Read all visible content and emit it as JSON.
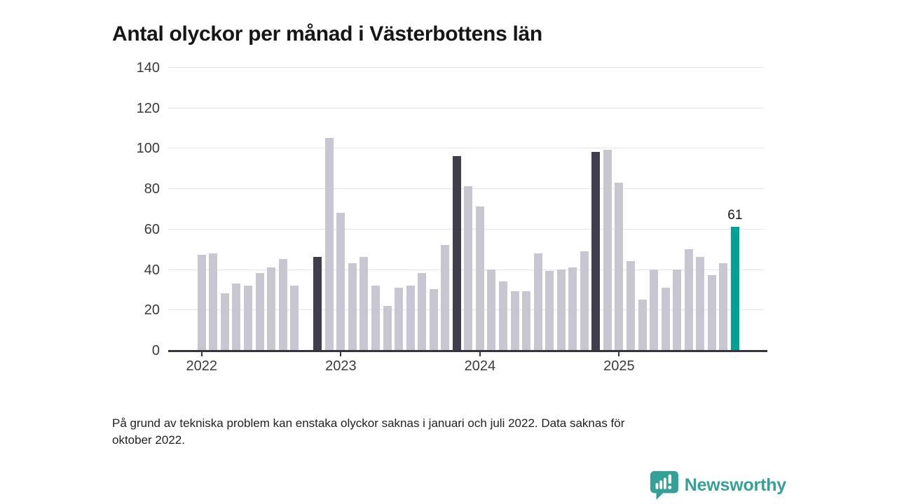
{
  "title": "Antal olyckor per månad i Västerbottens län",
  "footnote": {
    "line1": "På grund av tekniska problem kan enstaka olyckor saknas i januari och juli 2022. Data saknas för",
    "line2": "oktober 2022."
  },
  "logo": {
    "text": "Newsworthy",
    "icon": "speech-bubble-bar-chart-icon",
    "color": "#35a099"
  },
  "colors": {
    "axis": "#35343e",
    "gridline": "#e4e3e8",
    "title_text": "#161616",
    "tick_text": "#3a3a3a"
  },
  "chart_data": {
    "type": "bar",
    "title": "Antal olyckor per månad i Västerbottens län",
    "x": [
      "2022-01",
      "2022-02",
      "2022-03",
      "2022-04",
      "2022-05",
      "2022-06",
      "2022-07",
      "2022-08",
      "2022-09",
      "2022-10",
      "2022-11",
      "2022-12",
      "2023-01",
      "2023-02",
      "2023-03",
      "2023-04",
      "2023-05",
      "2023-06",
      "2023-07",
      "2023-08",
      "2023-09",
      "2023-10",
      "2023-11",
      "2023-12",
      "2024-01",
      "2024-02",
      "2024-03",
      "2024-04",
      "2024-05",
      "2024-06",
      "2024-07",
      "2024-08",
      "2024-09",
      "2024-10",
      "2024-11",
      "2024-12",
      "2025-01",
      "2025-02",
      "2025-03",
      "2025-04",
      "2025-05",
      "2025-06",
      "2025-07",
      "2025-08",
      "2025-09",
      "2025-10",
      "2025-11"
    ],
    "values": [
      47,
      48,
      28,
      33,
      32,
      38,
      41,
      45,
      32,
      null,
      46,
      105,
      68,
      43,
      46,
      32,
      22,
      31,
      32,
      38,
      30,
      52,
      96,
      81,
      71,
      40,
      34,
      29,
      29,
      48,
      39,
      40,
      41,
      49,
      98,
      99,
      83,
      44,
      25,
      40,
      31,
      40,
      50,
      46,
      37,
      43,
      61
    ],
    "missing_months": [
      "2022-10"
    ],
    "ylim": [
      0,
      140
    ],
    "ytick_labels": [
      "0",
      "20",
      "40",
      "60",
      "80",
      "100",
      "120",
      "140"
    ],
    "xtick_labels": [
      "2022",
      "2023",
      "2024",
      "2025"
    ],
    "xtick_month_index": [
      0,
      12,
      24,
      36
    ],
    "grid": "horizontal",
    "legend": "none",
    "bar_color_default": "#c8c6d0",
    "bar_color_dark": "#403e4c",
    "bar_color_accent": "#00a296",
    "dark_months": [
      "2022-11",
      "2023-11",
      "2024-11"
    ],
    "accent_months": [
      "2025-11"
    ],
    "data_label": {
      "x": "2025-11",
      "text": "61"
    }
  }
}
